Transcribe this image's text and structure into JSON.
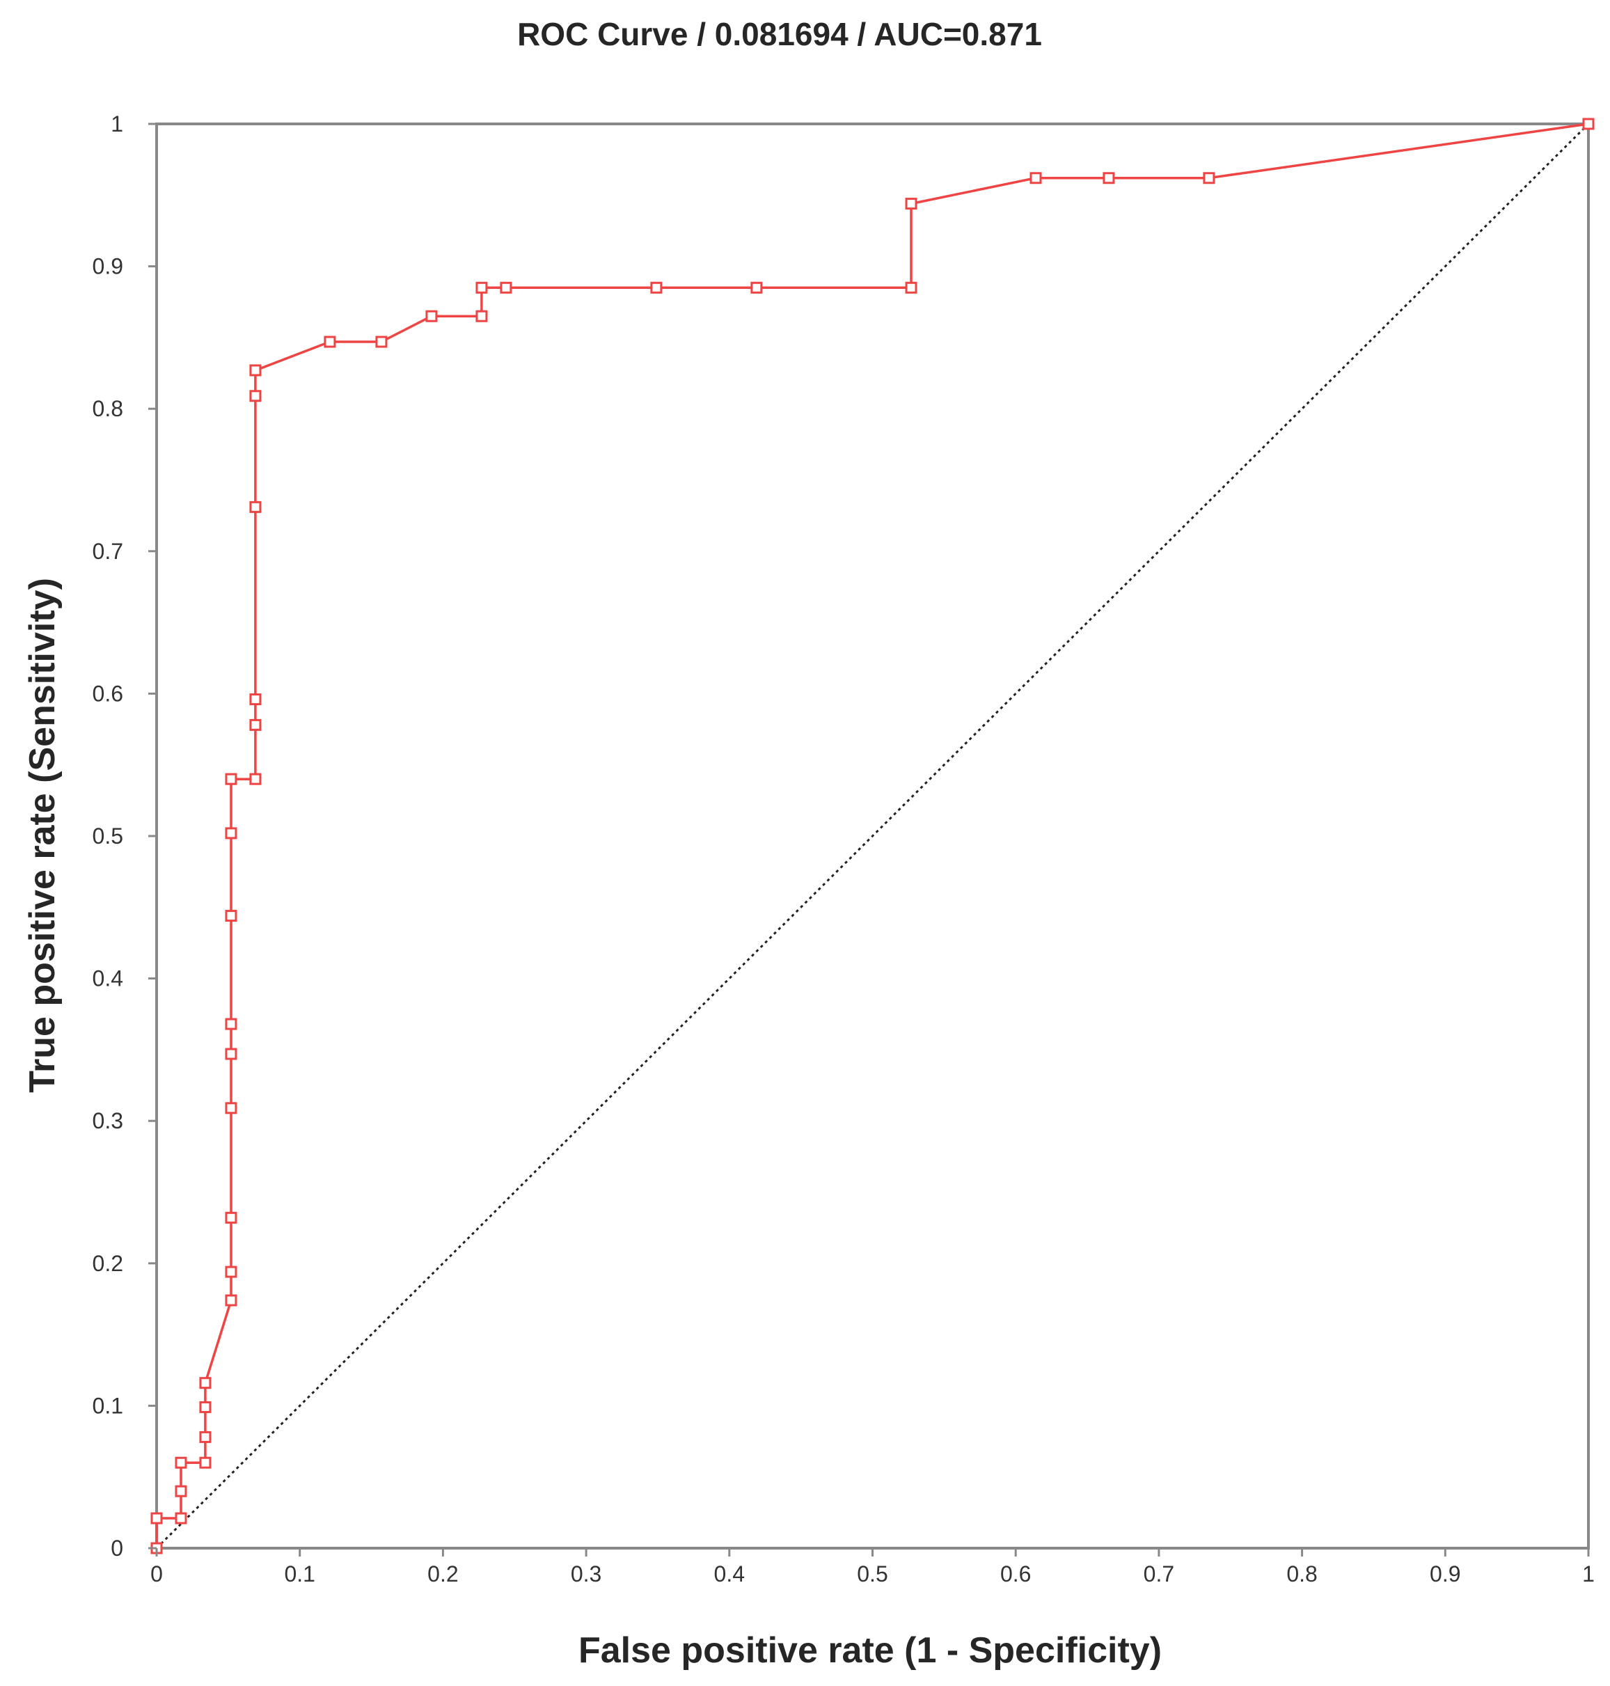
{
  "chart_data": {
    "type": "line",
    "title": "ROC Curve / 0.081694 / AUC=0.871",
    "xlabel": "False positive rate (1 - Specificity)",
    "ylabel": "True positive rate (Sensitivity)",
    "xlim": [
      0,
      1
    ],
    "ylim": [
      0,
      1
    ],
    "x_ticks": [
      "0",
      "0.1",
      "0.2",
      "0.3",
      "0.4",
      "0.5",
      "0.6",
      "0.7",
      "0.8",
      "0.9",
      "1"
    ],
    "y_ticks": [
      "0",
      "0.1",
      "0.2",
      "0.3",
      "0.4",
      "0.5",
      "0.6",
      "0.7",
      "0.8",
      "0.9",
      "1"
    ],
    "grid": false,
    "legend": "none",
    "series": [
      {
        "color": "#ee4444",
        "marker": "square",
        "points": [
          [
            0.0,
            0.0
          ],
          [
            0.0,
            0.021
          ],
          [
            0.017,
            0.021
          ],
          [
            0.017,
            0.04
          ],
          [
            0.017,
            0.06
          ],
          [
            0.034,
            0.06
          ],
          [
            0.034,
            0.078
          ],
          [
            0.034,
            0.099
          ],
          [
            0.034,
            0.116
          ],
          [
            0.052,
            0.174
          ],
          [
            0.052,
            0.194
          ],
          [
            0.052,
            0.232
          ],
          [
            0.052,
            0.309
          ],
          [
            0.052,
            0.347
          ],
          [
            0.052,
            0.368
          ],
          [
            0.052,
            0.444
          ],
          [
            0.052,
            0.502
          ],
          [
            0.052,
            0.54
          ],
          [
            0.069,
            0.54
          ],
          [
            0.069,
            0.578
          ],
          [
            0.069,
            0.596
          ],
          [
            0.069,
            0.731
          ],
          [
            0.069,
            0.809
          ],
          [
            0.069,
            0.827
          ],
          [
            0.121,
            0.847
          ],
          [
            0.157,
            0.847
          ],
          [
            0.192,
            0.865
          ],
          [
            0.227,
            0.865
          ],
          [
            0.227,
            0.885
          ],
          [
            0.244,
            0.885
          ],
          [
            0.349,
            0.885
          ],
          [
            0.419,
            0.885
          ],
          [
            0.527,
            0.885
          ],
          [
            0.527,
            0.944
          ],
          [
            0.614,
            0.962
          ],
          [
            0.665,
            0.962
          ],
          [
            0.735,
            0.962
          ],
          [
            1.0,
            1.0
          ]
        ]
      }
    ],
    "reference_line": {
      "from": [
        0,
        0
      ],
      "to": [
        1,
        1
      ],
      "style": "dotted",
      "color": "#222222"
    },
    "frame_color": "#888888"
  }
}
